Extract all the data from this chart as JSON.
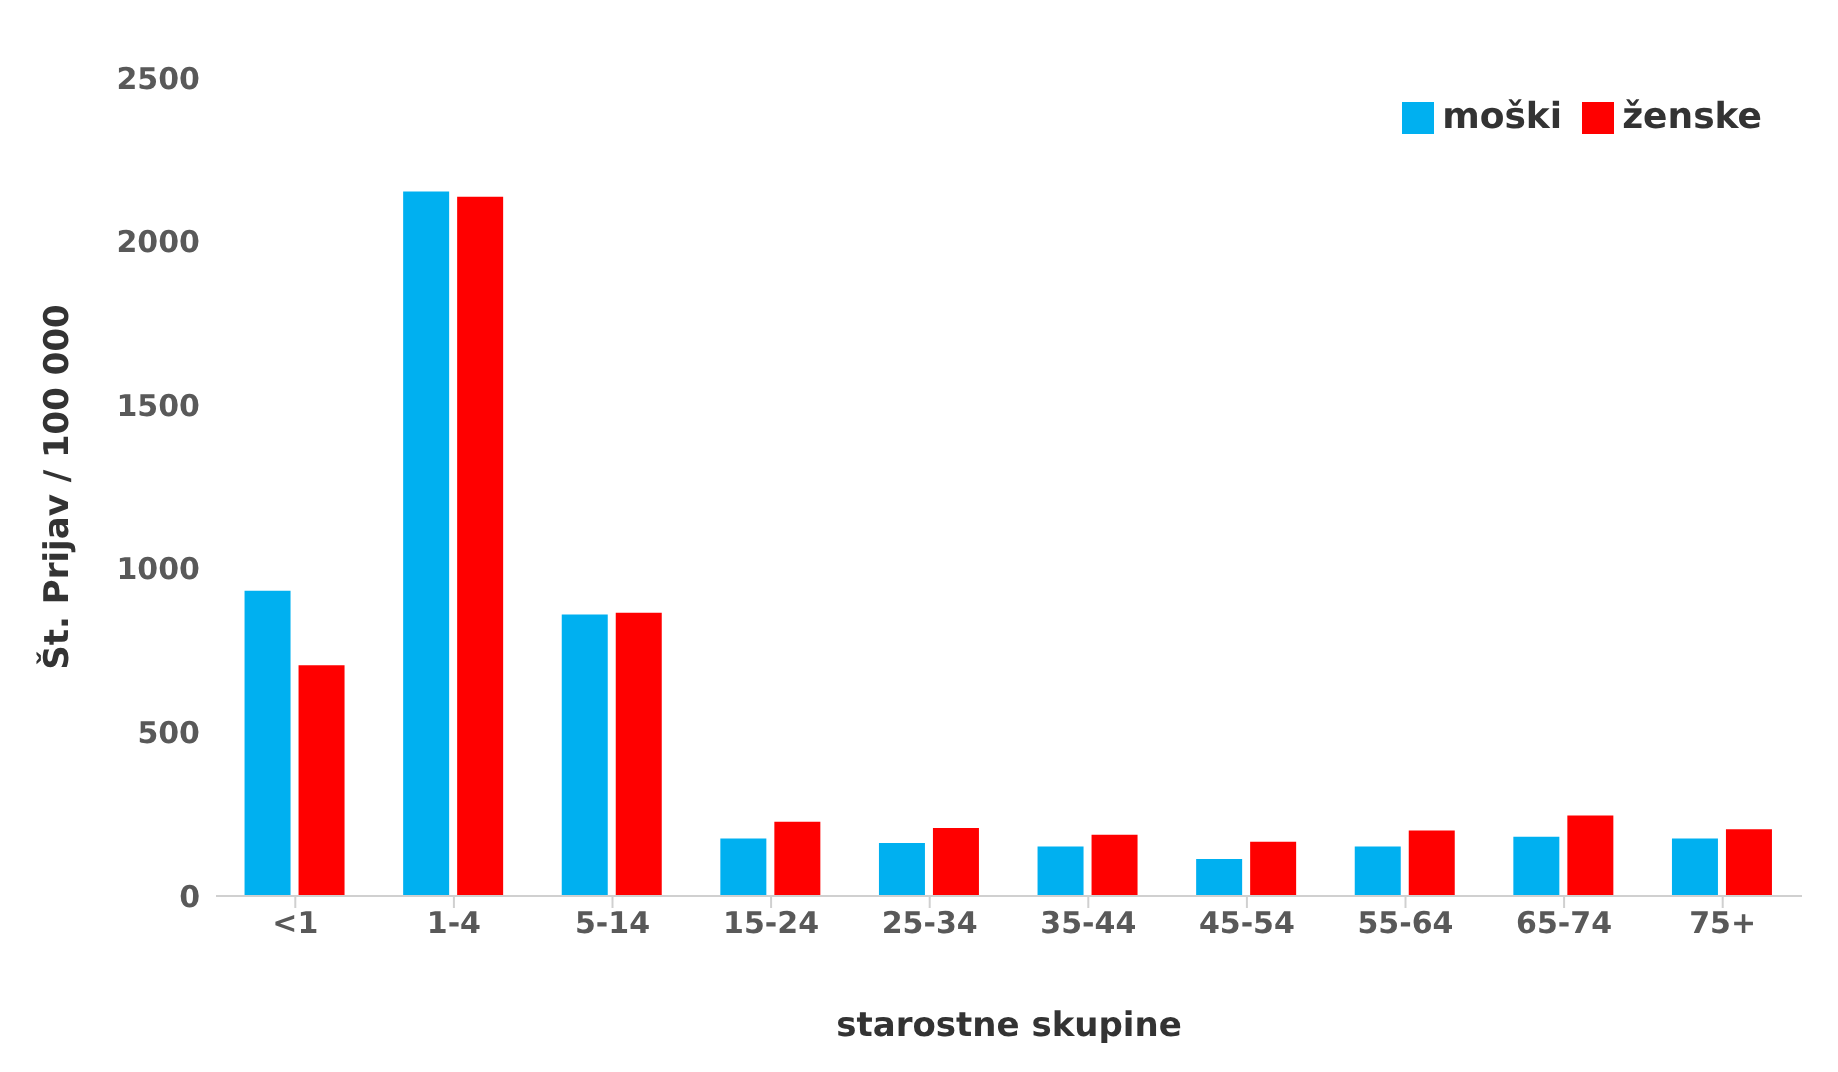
{
  "chart_data": {
    "type": "bar",
    "xlabel": "starostne skupine",
    "ylabel": "Št. Prijav / 100 000",
    "categories": [
      "<1",
      "1-4",
      "5-14",
      "15-24",
      "25-34",
      "35-44",
      "45-54",
      "55-64",
      "65-74",
      "75+"
    ],
    "series": [
      {
        "name": "moški",
        "color": "#00b0f0",
        "values": [
          933,
          2153,
          860,
          176,
          162,
          151,
          113,
          151,
          181,
          176
        ]
      },
      {
        "name": "ženske",
        "color": "#ff0000",
        "values": [
          705,
          2137,
          866,
          227,
          208,
          187,
          166,
          200,
          246,
          204
        ]
      }
    ],
    "ylim": [
      0,
      2500
    ],
    "yticks": [
      0,
      500,
      1000,
      1500,
      2000,
      2500
    ],
    "grid": false,
    "legend": "top right"
  }
}
